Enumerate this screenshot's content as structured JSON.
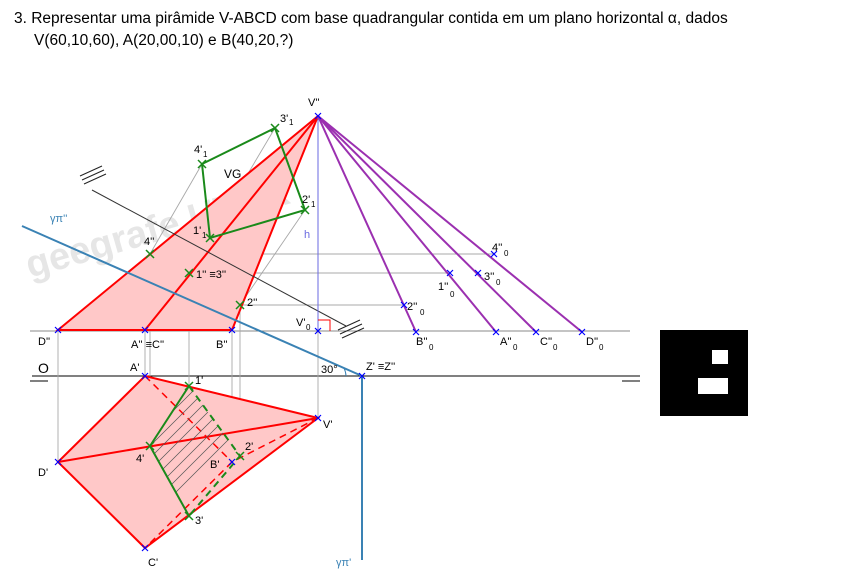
{
  "problem": {
    "line1": "3. Representar uma pirâmide V-ABCD com base quadrangular contida em um plano horizontal α, dados",
    "line2": "V(60,10,60), A(20,00,10) e B(40,20,?)"
  },
  "watermark": "geegrafe UTPR",
  "labels": {
    "v2": "V''",
    "p31": "3'",
    "p31sub": "1",
    "p41": "4'",
    "p41sub": "1",
    "p21": "2'",
    "p21sub": "1",
    "p11": "1'",
    "p11sub": "1",
    "vg": "VG",
    "h": "h",
    "gamma2": "γπ''",
    "p4pp": "4''",
    "p1eq3": "1'' ≡3''",
    "p2pp": "2''",
    "v0": "V'",
    "v0sub": "0",
    "p4pp0": "4''",
    "p4pp0sub": "0",
    "p3pp0": "3''",
    "p3pp0sub": "0",
    "p1pp0": "1''",
    "p1pp0sub": "0",
    "p2pp0": "2''",
    "p2pp0sub": "0",
    "dpp": "D''",
    "aeqc": "A'' ≡C''",
    "bpp": "B''",
    "bpp0": "B''",
    "bpp0sub": "0",
    "app0": "A''",
    "app0sub": "0",
    "cpp0": "C''",
    "cpp0sub": "0",
    "dpp0": "D''",
    "dpp0sub": "0",
    "o": "O",
    "ap": "A'",
    "p1p": "1'",
    "angle": "30°",
    "zeq": "Z' ≡Z''",
    "vp": "V'",
    "dp": "D'",
    "p4p": "4'",
    "p2p": "2'",
    "bp": "B'",
    "p3p": "3'",
    "cp": "C'",
    "gamma1": "γπ'"
  },
  "colors": {
    "red": "#ff0000",
    "fill": "#ffc8c8",
    "green": "#1a8a1a",
    "blue": "#3a82b4",
    "purple": "#9b30b0",
    "marker": "#0000ff",
    "gray": "#a8a8a8"
  }
}
